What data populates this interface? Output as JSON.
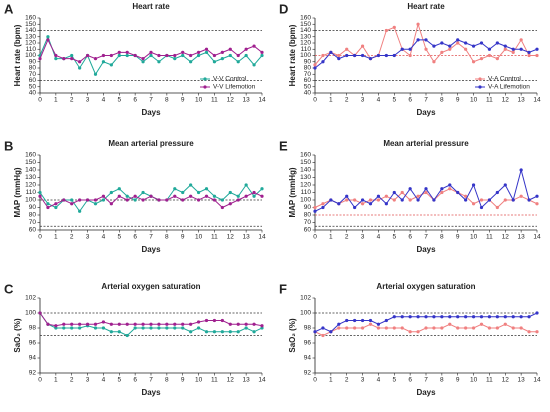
{
  "chart_data": [
    {
      "type": "line",
      "panel": "A",
      "title": "Heart rate",
      "xlabel": "Days",
      "ylabel": "Heart rate (bpm)",
      "x": [
        0,
        0.5,
        1,
        1.5,
        2,
        2.5,
        3,
        3.5,
        4,
        4.5,
        5,
        5.5,
        6,
        6.5,
        7,
        7.5,
        8,
        8.5,
        9,
        9.5,
        10,
        10.5,
        11,
        11.5,
        12,
        12.5,
        13,
        13.5,
        14
      ],
      "xlim": [
        0,
        14
      ],
      "xticks": [
        0,
        1,
        2,
        3,
        4,
        5,
        6,
        7,
        8,
        9,
        10,
        11,
        12,
        13,
        14
      ],
      "ylim": [
        40,
        160
      ],
      "yticks": [
        40,
        50,
        60,
        70,
        80,
        90,
        100,
        110,
        120,
        130,
        140,
        150,
        160
      ],
      "ref_lines": [
        {
          "value": 140,
          "color": "#333333"
        },
        {
          "value": 60,
          "color": "#333333"
        }
      ],
      "legend": "lower right",
      "series": [
        {
          "name": "V-V Control",
          "color": "#20a99a",
          "values": [
            100,
            130,
            95,
            95,
            100,
            80,
            100,
            70,
            90,
            85,
            100,
            100,
            100,
            90,
            100,
            90,
            100,
            95,
            100,
            90,
            100,
            105,
            90,
            95,
            100,
            90,
            100,
            85,
            100
          ]
        },
        {
          "name": "V-V Lifemotion",
          "color": "#a0208f",
          "values": [
            95,
            125,
            100,
            95,
            95,
            90,
            100,
            95,
            100,
            100,
            105,
            105,
            100,
            95,
            105,
            100,
            100,
            100,
            105,
            100,
            105,
            110,
            100,
            105,
            110,
            100,
            110,
            115,
            105
          ]
        }
      ]
    },
    {
      "type": "line",
      "panel": "B",
      "title": "Mean arterial pressure",
      "xlabel": "Days",
      "ylabel": "MAP (mmHg)",
      "x": [
        0,
        0.5,
        1,
        1.5,
        2,
        2.5,
        3,
        3.5,
        4,
        4.5,
        5,
        5.5,
        6,
        6.5,
        7,
        7.5,
        8,
        8.5,
        9,
        9.5,
        10,
        10.5,
        11,
        11.5,
        12,
        12.5,
        13,
        13.5,
        14
      ],
      "xlim": [
        0,
        14
      ],
      "xticks": [
        0,
        1,
        2,
        3,
        4,
        5,
        6,
        7,
        8,
        9,
        10,
        11,
        12,
        13,
        14
      ],
      "ylim": [
        60,
        160
      ],
      "yticks": [
        60,
        70,
        80,
        90,
        100,
        110,
        120,
        130,
        140,
        150,
        160
      ],
      "ref_lines": [
        {
          "value": 100,
          "color": "#333333"
        },
        {
          "value": 65,
          "color": "#333333"
        }
      ],
      "series": [
        {
          "name": "V-V Control",
          "color": "#20a99a",
          "values": [
            110,
            95,
            90,
            100,
            100,
            85,
            100,
            95,
            100,
            110,
            115,
            105,
            100,
            110,
            105,
            100,
            100,
            115,
            110,
            120,
            110,
            115,
            105,
            100,
            110,
            105,
            120,
            105,
            115
          ]
        },
        {
          "name": "V-V Lifemotion",
          "color": "#a0208f",
          "values": [
            105,
            90,
            95,
            100,
            95,
            100,
            100,
            100,
            105,
            95,
            105,
            100,
            105,
            100,
            105,
            100,
            100,
            105,
            100,
            105,
            100,
            105,
            100,
            90,
            95,
            100,
            105,
            110,
            105
          ]
        }
      ]
    },
    {
      "type": "line",
      "panel": "C",
      "title": "Arterial oxygen saturation",
      "xlabel": "Days",
      "ylabel": "SaO₂ (%)",
      "x": [
        0,
        0.5,
        1,
        1.5,
        2,
        2.5,
        3,
        3.5,
        4,
        4.5,
        5,
        5.5,
        6,
        6.5,
        7,
        7.5,
        8,
        8.5,
        9,
        9.5,
        10,
        10.5,
        11,
        11.5,
        12,
        12.5,
        13,
        13.5,
        14
      ],
      "xlim": [
        0,
        14
      ],
      "xticks": [
        0,
        1,
        2,
        3,
        4,
        5,
        6,
        7,
        8,
        9,
        10,
        11,
        12,
        13,
        14
      ],
      "ylim": [
        92,
        102
      ],
      "yticks": [
        92,
        94,
        96,
        98,
        100,
        102
      ],
      "ref_lines": [
        {
          "value": 100,
          "color": "#333333"
        },
        {
          "value": 97,
          "color": "#333333"
        }
      ],
      "series": [
        {
          "name": "V-V Control",
          "color": "#20a99a",
          "values": [
            100,
            98.5,
            98,
            98,
            98,
            98,
            98.3,
            98,
            98,
            97.5,
            97.5,
            97,
            98,
            98,
            98,
            98,
            98,
            98,
            98,
            97.5,
            98,
            97.5,
            97.5,
            97.5,
            97.5,
            97.5,
            98,
            97.5,
            98
          ]
        },
        {
          "name": "V-V Lifemotion",
          "color": "#a0208f",
          "values": [
            100,
            98.5,
            98.3,
            98.5,
            98.5,
            98.5,
            98.5,
            98.5,
            98.8,
            98.5,
            98.5,
            98.5,
            98.5,
            98.5,
            98.5,
            98.5,
            98.5,
            98.5,
            98.5,
            98.5,
            98.8,
            99,
            99,
            99,
            98.5,
            98.5,
            98.5,
            98.5,
            98.3
          ]
        }
      ]
    },
    {
      "type": "line",
      "panel": "D",
      "title": "Heart rate",
      "xlabel": "Days",
      "ylabel": "Heart rate (bpm)",
      "x": [
        0,
        0.5,
        1,
        1.5,
        2,
        2.5,
        3,
        3.5,
        4,
        4.5,
        5,
        5.5,
        6,
        6.5,
        7,
        7.5,
        8,
        8.5,
        9,
        9.5,
        10,
        10.5,
        11,
        11.5,
        12,
        12.5,
        13,
        13.5,
        14
      ],
      "xlim": [
        0,
        14
      ],
      "xticks": [
        0,
        1,
        2,
        3,
        4,
        5,
        6,
        7,
        8,
        9,
        10,
        11,
        12,
        13,
        14
      ],
      "ylim": [
        40,
        160
      ],
      "yticks": [
        40,
        50,
        60,
        70,
        80,
        90,
        100,
        110,
        120,
        130,
        140,
        150,
        160
      ],
      "ref_lines": [
        {
          "value": 140,
          "color": "#333333"
        },
        {
          "value": 100,
          "color": "#e05050"
        },
        {
          "value": 60,
          "color": "#333333"
        }
      ],
      "legend": "lower right",
      "series": [
        {
          "name": "V-A Control",
          "color": "#f08080",
          "values": [
            85,
            100,
            105,
            100,
            110,
            100,
            115,
            95,
            100,
            140,
            145,
            110,
            100,
            150,
            110,
            90,
            105,
            110,
            120,
            110,
            90,
            95,
            100,
            95,
            110,
            105,
            125,
            100,
            100
          ]
        },
        {
          "name": "V-A Lifemotion",
          "color": "#3535c8",
          "values": [
            80,
            90,
            105,
            95,
            100,
            100,
            100,
            95,
            100,
            100,
            100,
            110,
            110,
            125,
            125,
            115,
            120,
            115,
            125,
            120,
            115,
            120,
            110,
            120,
            115,
            110,
            110,
            105,
            110
          ]
        }
      ]
    },
    {
      "type": "line",
      "panel": "E",
      "title": "Mean arterial pressure",
      "xlabel": "Days",
      "ylabel": "MAP (mmHg)",
      "x": [
        0,
        0.5,
        1,
        1.5,
        2,
        2.5,
        3,
        3.5,
        4,
        4.5,
        5,
        5.5,
        6,
        6.5,
        7,
        7.5,
        8,
        8.5,
        9,
        9.5,
        10,
        10.5,
        11,
        11.5,
        12,
        12.5,
        13,
        13.5,
        14
      ],
      "xlim": [
        0,
        14
      ],
      "xticks": [
        0,
        1,
        2,
        3,
        4,
        5,
        6,
        7,
        8,
        9,
        10,
        11,
        12,
        13,
        14
      ],
      "ylim": [
        60,
        160
      ],
      "yticks": [
        60,
        70,
        80,
        90,
        100,
        110,
        120,
        130,
        140,
        150,
        160
      ],
      "ref_lines": [
        {
          "value": 80,
          "color": "#e05050"
        },
        {
          "value": 65,
          "color": "#333333"
        }
      ],
      "series": [
        {
          "name": "V-A Control",
          "color": "#f08080",
          "values": [
            90,
            95,
            100,
            95,
            100,
            100,
            95,
            100,
            100,
            105,
            100,
            110,
            100,
            105,
            110,
            100,
            110,
            115,
            110,
            105,
            95,
            100,
            100,
            90,
            100,
            100,
            105,
            100,
            95
          ]
        },
        {
          "name": "V-A Lifemotion",
          "color": "#3535c8",
          "values": [
            85,
            90,
            100,
            95,
            105,
            90,
            100,
            95,
            105,
            95,
            110,
            100,
            115,
            100,
            115,
            100,
            115,
            120,
            110,
            100,
            120,
            90,
            100,
            110,
            120,
            100,
            140,
            100,
            105
          ]
        }
      ]
    },
    {
      "type": "line",
      "panel": "F",
      "title": "Arterial oxygen saturation",
      "xlabel": "Days",
      "ylabel": "SaO₂ (%)",
      "x": [
        0,
        0.5,
        1,
        1.5,
        2,
        2.5,
        3,
        3.5,
        4,
        4.5,
        5,
        5.5,
        6,
        6.5,
        7,
        7.5,
        8,
        8.5,
        9,
        9.5,
        10,
        10.5,
        11,
        11.5,
        12,
        12.5,
        13,
        13.5,
        14
      ],
      "xlim": [
        0,
        14
      ],
      "xticks": [
        0,
        1,
        2,
        3,
        4,
        5,
        6,
        7,
        8,
        9,
        10,
        11,
        12,
        13,
        14
      ],
      "ylim": [
        92,
        102
      ],
      "yticks": [
        92,
        94,
        96,
        98,
        100,
        102
      ],
      "ref_lines": [
        {
          "value": 100,
          "color": "#333333"
        },
        {
          "value": 97,
          "color": "#333333"
        }
      ],
      "series": [
        {
          "name": "V-A Control",
          "color": "#f08080",
          "values": [
            97.5,
            97,
            97.5,
            98,
            98,
            98,
            98,
            98.5,
            98,
            98,
            98,
            98,
            97.5,
            97.5,
            98,
            98,
            98,
            98.5,
            98,
            98,
            98,
            98.5,
            98,
            98,
            98.5,
            98,
            98,
            97.5,
            97.5
          ]
        },
        {
          "name": "V-A Lifemotion",
          "color": "#3535c8",
          "values": [
            97.5,
            98,
            97.5,
            98.5,
            99,
            99,
            99,
            99,
            98.5,
            99,
            99.5,
            99.5,
            99.5,
            99.5,
            99.5,
            99.5,
            99.5,
            99.5,
            99.5,
            99.5,
            99.5,
            99.5,
            99.5,
            99.5,
            99.5,
            99.5,
            99.5,
            99.5,
            100
          ]
        }
      ]
    }
  ]
}
